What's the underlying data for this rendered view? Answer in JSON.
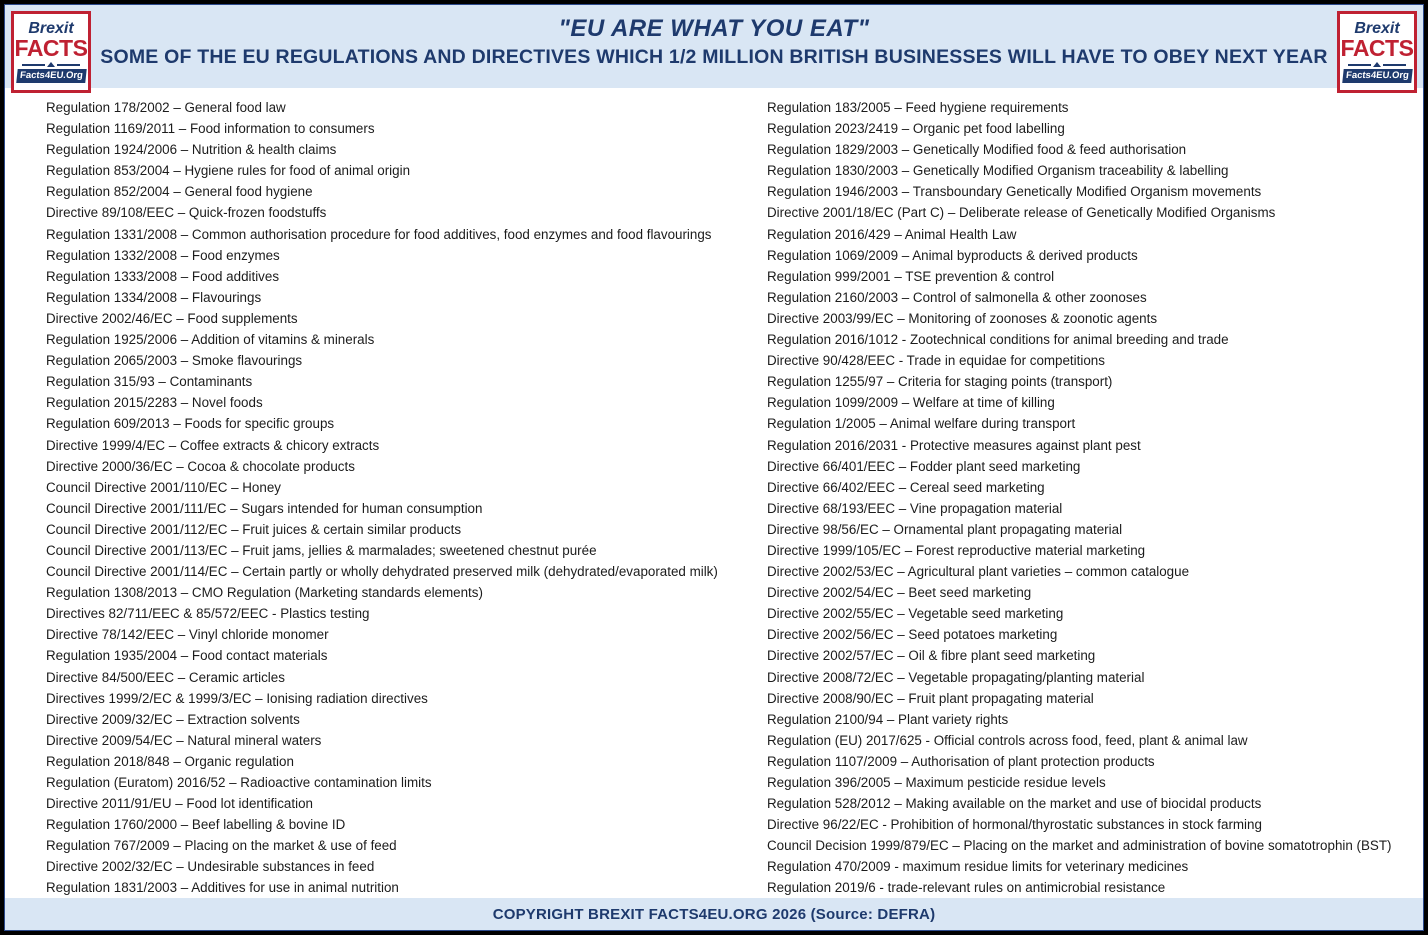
{
  "page": {
    "title": "\"EU ARE WHAT YOU EAT\"",
    "subtitle": "SOME OF THE EU REGULATIONS AND DIRECTIVES WHICH 1/2 MILLION BRITISH BUSINESSES WILL HAVE TO OBEY NEXT YEAR",
    "footer": "COPYRIGHT BREXIT FACTS4EU.ORG 2026 (Source: DEFRA)"
  },
  "logo": {
    "brexit": "Brexit",
    "facts": "FACTS",
    "banner": "Facts4EU.Org"
  },
  "colors": {
    "navy": "#1e3a6d",
    "red": "#bf2132",
    "band_blue": "#d9e6f4",
    "body_text": "#1c1c1c",
    "border_black": "#000000"
  },
  "columns": {
    "left": {
      "items": [
        "Regulation 178/2002 – General food law",
        "Regulation 1169/2011 – Food information to consumers",
        "Regulation 1924/2006 – Nutrition & health claims",
        "Regulation 853/2004 – Hygiene rules for food of animal origin",
        "Regulation 852/2004 – General food hygiene",
        "Directive 89/108/EEC – Quick-frozen foodstuffs",
        "Regulation 1331/2008 – Common authorisation procedure for food additives, food enzymes and food flavourings",
        "Regulation 1332/2008 – Food enzymes",
        "Regulation 1333/2008 – Food additives",
        "Regulation 1334/2008 – Flavourings",
        "Directive 2002/46/EC – Food supplements",
        "Regulation 1925/2006 – Addition of vitamins & minerals",
        "Regulation 2065/2003 – Smoke flavourings",
        "Regulation 315/93 – Contaminants",
        "Regulation 2015/2283 – Novel foods",
        "Regulation 609/2013 – Foods for specific groups",
        "Directive 1999/4/EC – Coffee extracts & chicory extracts",
        "Directive 2000/36/EC – Cocoa & chocolate products",
        "Council Directive 2001/110/EC – Honey",
        "Council Directive 2001/111/EC – Sugars intended for human consumption",
        "Council Directive 2001/112/EC – Fruit juices & certain similar products",
        "Council Directive 2001/113/EC – Fruit jams, jellies & marmalades; sweetened chestnut purée",
        "Council Directive 2001/114/EC – Certain partly or wholly dehydrated preserved milk (dehydrated/evaporated milk)",
        "Regulation 1308/2013 – CMO Regulation (Marketing standards elements)",
        "Directives 82/711/EEC & 85/572/EEC - Plastics testing",
        "Directive 78/142/EEC – Vinyl chloride monomer",
        "Regulation 1935/2004 – Food contact materials",
        "Directive 84/500/EEC – Ceramic articles",
        "Directives 1999/2/EC & 1999/3/EC – Ionising radiation directives",
        "Directive 2009/32/EC – Extraction solvents",
        "Directive 2009/54/EC – Natural mineral waters",
        "Regulation 2018/848 – Organic regulation",
        "Regulation (Euratom) 2016/52 – Radioactive contamination limits",
        "Directive 2011/91/EU – Food lot identification",
        "Regulation 1760/2000 – Beef labelling & bovine ID",
        "Regulation 767/2009 – Placing on the market & use of feed",
        "Directive 2002/32/EC – Undesirable substances in feed",
        "Regulation 1831/2003 – Additives for use in animal nutrition"
      ]
    },
    "right": {
      "items": [
        "Regulation 183/2005 – Feed hygiene requirements",
        "Regulation 2023/2419 – Organic pet food labelling",
        "Regulation 1829/2003 – Genetically Modified food & feed authorisation",
        "Regulation 1830/2003 – Genetically Modified Organism traceability & labelling",
        "Regulation 1946/2003 – Transboundary Genetically Modified Organism movements",
        "Directive 2001/18/EC (Part C) – Deliberate release of Genetically Modified Organisms",
        "Regulation 2016/429 – Animal Health Law",
        "Regulation 1069/2009 – Animal byproducts & derived products",
        "Regulation 999/2001 – TSE prevention & control",
        "Regulation 2160/2003 – Control of salmonella & other zoonoses",
        "Directive 2003/99/EC – Monitoring of zoonoses & zoonotic agents",
        "Regulation 2016/1012 - Zootechnical conditions for animal breeding and trade",
        "Directive 90/428/EEC - Trade in equidae for competitions",
        "Regulation 1255/97 – Criteria for staging points (transport)",
        "Regulation 1099/2009 – Welfare at time of killing",
        "Regulation 1/2005 – Animal welfare during transport",
        "Regulation 2016/2031 - Protective measures against plant pest",
        "Directive 66/401/EEC – Fodder plant seed marketing",
        "Directive 66/402/EEC – Cereal seed marketing",
        "Directive 68/193/EEC – Vine propagation material",
        "Directive 98/56/EC – Ornamental plant propagating material",
        "Directive 1999/105/EC – Forest reproductive material marketing",
        "Directive 2002/53/EC – Agricultural plant varieties – common catalogue",
        "Directive 2002/54/EC – Beet seed marketing",
        "Directive 2002/55/EC – Vegetable seed marketing",
        "Directive 2002/56/EC – Seed potatoes marketing",
        "Directive 2002/57/EC – Oil & fibre plant seed marketing",
        "Directive 2008/72/EC – Vegetable propagating/planting material",
        "Directive 2008/90/EC – Fruit plant propagating material",
        "Regulation 2100/94 – Plant variety rights",
        "Regulation (EU) 2017/625 - Official controls across food, feed, plant & animal law",
        "Regulation 1107/2009 – Authorisation of plant protection products",
        "Regulation 396/2005 – Maximum pesticide residue levels",
        "Regulation 528/2012 – Making available on the market and use of biocidal products",
        "Directive 96/22/EC - Prohibition of hormonal/thyrostatic substances in stock farming",
        "Council Decision 1999/879/EC – Placing on the market and administration of bovine somatotrophin (BST)",
        "Regulation 470/2009 - maximum residue limits for veterinary medicines",
        "Regulation 2019/6 - trade-relevant rules on antimicrobial resistance"
      ]
    }
  }
}
